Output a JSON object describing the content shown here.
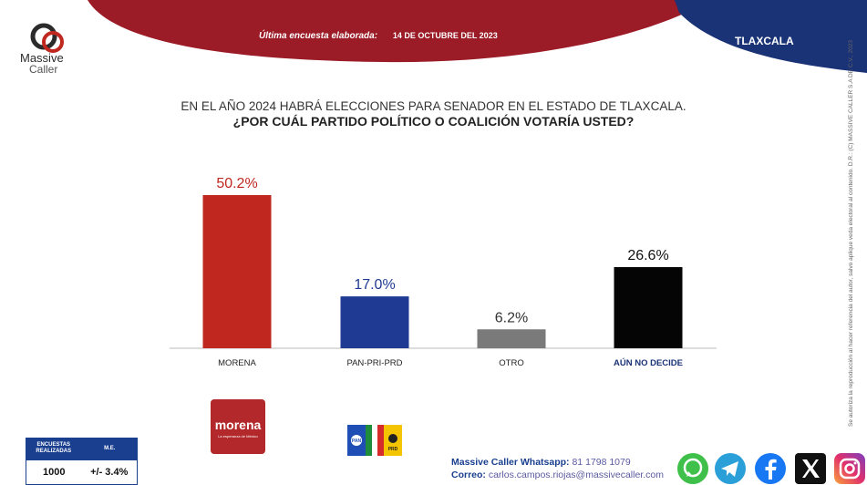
{
  "header": {
    "brand_line1": "Massive",
    "brand_line2": "Caller",
    "survey_label": "Última encuesta elaborada:",
    "survey_date": "14 DE OCTUBRE DEL 2023",
    "state": "TLAXCALA"
  },
  "question": {
    "line1": "EN EL AÑO 2024 HABRÁ ELECCIONES PARA SENADOR EN EL ESTADO DE TLAXCALA.",
    "line2": "¿POR CUÁL PARTIDO POLÍTICO O COALICIÓN  VOTARÍA USTED?"
  },
  "chart_data": {
    "type": "bar",
    "categories": [
      "MORENA",
      "PAN-PRI-PRD",
      "OTRO",
      "AÚN NO DECIDE"
    ],
    "values": [
      50.2,
      17.0,
      6.2,
      26.6
    ],
    "value_labels": [
      "50.2%",
      "17.0%",
      "6.2%",
      "26.6%"
    ],
    "colors": [
      "#c0281f",
      "#1f3a93",
      "#7a7a7a",
      "#050505"
    ],
    "label_colors": [
      "#c0281f",
      "#1f3a93",
      "#333333",
      "#111111"
    ],
    "ylim": [
      0,
      60
    ],
    "grid": false
  },
  "logos": {
    "morena_text": "morena",
    "morena_sub": "La esperanza de México",
    "pan": "PAN",
    "prd": "PRD"
  },
  "side_note": "Se autoriza la reproducción al hacer referencia del autor, salvo aplique veda electoral al contenido.   D.R.: (C) MASSIVE CALLER S.A DE C.V., 2023",
  "stats": {
    "h1": "ENCUESTAS REALIZADAS",
    "h2": "M.E.",
    "v1": "1000",
    "v2": "+/- 3.4%"
  },
  "contact": {
    "whatsapp_label": "Massive Caller Whatsapp:",
    "whatsapp_number": "81 1798 1079",
    "email_label": "Correo:",
    "email": "carlos.campos.riojas@massivecaller.com"
  },
  "social": [
    "whatsapp-icon",
    "telegram-icon",
    "facebook-icon",
    "x-icon",
    "instagram-icon"
  ],
  "theme": {
    "red": "#9b1b26",
    "navy": "#1a3276"
  }
}
